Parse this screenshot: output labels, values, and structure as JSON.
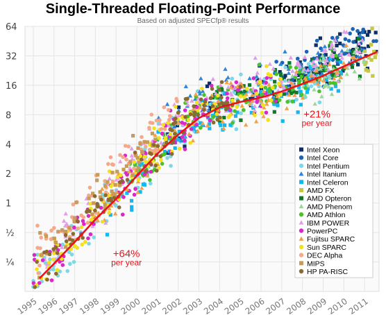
{
  "chart_data": {
    "type": "scatter",
    "title": "Single-Threaded Floating-Point Performance",
    "subtitle": "Based on adjusted SPECfp® results",
    "y_scale": "log2",
    "ylim": [
      0.125,
      64
    ],
    "xlim": [
      1994.6,
      2011.7
    ],
    "y_ticks": [
      {
        "value": 0.25,
        "label": "¼"
      },
      {
        "value": 0.5,
        "label": "½"
      },
      {
        "value": 1,
        "label": "1"
      },
      {
        "value": 2,
        "label": "2"
      },
      {
        "value": 4,
        "label": "4"
      },
      {
        "value": 8,
        "label": "8"
      },
      {
        "value": 16,
        "label": "16"
      },
      {
        "value": 32,
        "label": "32"
      },
      {
        "value": 64,
        "label": "64"
      }
    ],
    "x_ticks": [
      "1995",
      "1996",
      "1997",
      "1998",
      "1999",
      "2000",
      "2001",
      "2002",
      "2003",
      "2004",
      "2005",
      "2006",
      "2007",
      "2008",
      "2009",
      "2010",
      "2011"
    ],
    "grid": true,
    "legend_placement": "bottom-right",
    "series": [
      {
        "name": "Intel Xeon",
        "color": "#0b2f66",
        "marker": "square",
        "range": [
          2001.5,
          2011.6
        ],
        "offset": [
          -0.05,
          0.4
        ]
      },
      {
        "name": "Intel Core",
        "color": "#1d63b4",
        "marker": "circle",
        "range": [
          2006.5,
          2011.6
        ],
        "offset": [
          0.0,
          0.55
        ]
      },
      {
        "name": "Intel Pentium",
        "color": "#7fd6e6",
        "marker": "circle",
        "range": [
          1995.0,
          2009.5
        ],
        "offset": [
          -0.45,
          0.05
        ]
      },
      {
        "name": "Intel Itanium",
        "color": "#2f86d6",
        "marker": "triangle",
        "range": [
          2001.0,
          2011.0
        ],
        "offset": [
          0.05,
          0.45
        ]
      },
      {
        "name": "Intel Celeron",
        "color": "#14b8f0",
        "marker": "square",
        "range": [
          1998.5,
          2010.0
        ],
        "offset": [
          -0.75,
          -0.2
        ]
      },
      {
        "name": "AMD FX",
        "color": "#c3c84a",
        "marker": "square",
        "range": [
          2011.0,
          2011.6
        ],
        "offset": [
          -0.4,
          0.0
        ]
      },
      {
        "name": "AMD Opteron",
        "color": "#107a2b",
        "marker": "square",
        "range": [
          2003.5,
          2011.0
        ],
        "offset": [
          -0.35,
          0.15
        ]
      },
      {
        "name": "AMD Phenom",
        "color": "#9ad89a",
        "marker": "triangle",
        "range": [
          2007.5,
          2011.0
        ],
        "offset": [
          -0.55,
          0.0
        ]
      },
      {
        "name": "AMD Athlon",
        "color": "#4cc22a",
        "marker": "circle",
        "range": [
          1999.5,
          2010.0
        ],
        "offset": [
          -0.4,
          0.1
        ]
      },
      {
        "name": "IBM POWER",
        "color": "#e29ee6",
        "marker": "triangle",
        "range": [
          1995.5,
          2011.0
        ],
        "offset": [
          0.0,
          0.5
        ]
      },
      {
        "name": "PowerPC",
        "color": "#d828c8",
        "marker": "circle",
        "range": [
          1995.0,
          2007.0
        ],
        "offset": [
          -0.35,
          0.15
        ]
      },
      {
        "name": "Fujitsu SPARC",
        "color": "#f2a04a",
        "marker": "triangle",
        "range": [
          1998.0,
          2011.0
        ],
        "offset": [
          -0.5,
          0.0
        ]
      },
      {
        "name": "Sun SPARC",
        "color": "#f2e11e",
        "marker": "circle",
        "range": [
          1995.0,
          2007.0
        ],
        "offset": [
          -0.3,
          0.2
        ]
      },
      {
        "name": "DEC Alpha",
        "color": "#f4a98a",
        "marker": "circle",
        "range": [
          1995.0,
          2002.0
        ],
        "offset": [
          0.35,
          0.9
        ]
      },
      {
        "name": "MIPS",
        "color": "#c99a58",
        "marker": "square",
        "range": [
          1995.0,
          2001.0
        ],
        "offset": [
          -0.05,
          0.6
        ]
      },
      {
        "name": "HP PA-RISC",
        "color": "#8a6a30",
        "marker": "circle",
        "range": [
          1995.0,
          2005.0
        ],
        "offset": [
          -0.2,
          0.3
        ]
      }
    ],
    "trend_line": {
      "color": "#e8131b",
      "points": [
        [
          1995.3,
          0.17
        ],
        [
          1996.0,
          0.24
        ],
        [
          1997.0,
          0.4
        ],
        [
          1998.0,
          0.68
        ],
        [
          1999.0,
          1.1
        ],
        [
          2000.0,
          1.9
        ],
        [
          2001.0,
          3.2
        ],
        [
          2002.0,
          5.0
        ],
        [
          2003.0,
          7.4
        ],
        [
          2004.0,
          9.5
        ],
        [
          2005.0,
          10.8
        ],
        [
          2006.0,
          12.0
        ],
        [
          2007.0,
          13.8
        ],
        [
          2008.0,
          16.5
        ],
        [
          2009.0,
          20.0
        ],
        [
          2010.0,
          25.0
        ],
        [
          2011.0,
          31.0
        ],
        [
          2011.6,
          35.0
        ]
      ]
    },
    "annotations": [
      {
        "value": "+64%",
        "sub": "per year",
        "x": 1999.5,
        "y": 0.28
      },
      {
        "value": "+21%",
        "sub": "per year",
        "x": 2008.7,
        "y": 7.5
      }
    ]
  }
}
